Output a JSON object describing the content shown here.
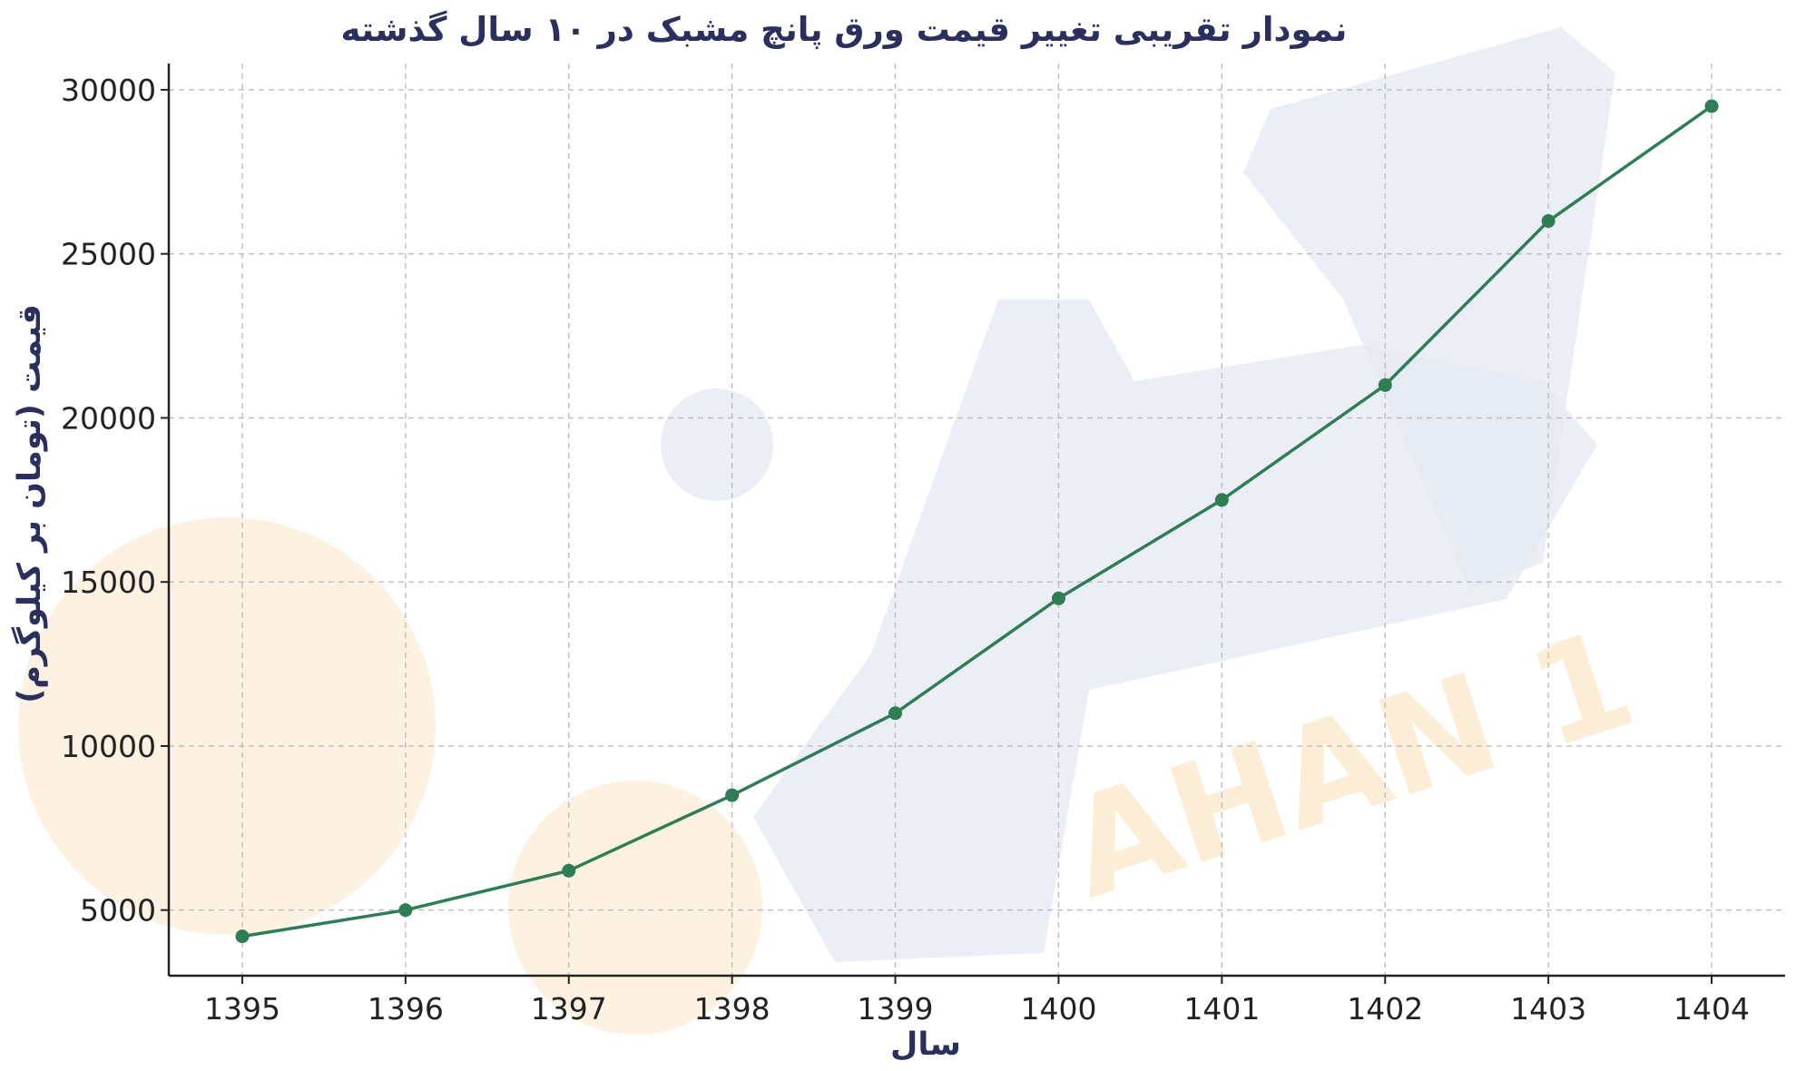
{
  "chart_data": {
    "type": "line",
    "title": "نمودار تقریبی تغییر قیمت ورق پانچ مشبک در ۱۰ سال گذشته",
    "xlabel": "سال",
    "ylabel": "قیمت (تومان بر کیلوگرم)",
    "x": [
      1395,
      1396,
      1397,
      1398,
      1399,
      1400,
      1401,
      1402,
      1403,
      1404
    ],
    "x_tick_labels": [
      "1395",
      "1396",
      "1397",
      "1398",
      "1399",
      "1400",
      "1401",
      "1402",
      "1403",
      "1404"
    ],
    "y_ticks": [
      5000,
      10000,
      15000,
      20000,
      25000,
      30000
    ],
    "y_tick_labels": [
      "5000",
      "10000",
      "15000",
      "20000",
      "25000",
      "30000"
    ],
    "ylim": [
      3000,
      30800
    ],
    "xlim": [
      1394.55,
      1404.45
    ],
    "grid": true,
    "series": [
      {
        "color": "#2e7d55",
        "values": [
          4200,
          5000,
          6200,
          8500,
          11000,
          14500,
          17500,
          21000,
          26000,
          29500
        ]
      }
    ]
  },
  "watermark": {
    "text": "AHAN 1",
    "colors": {
      "gray": "#e4e9f1",
      "orange": "#fdf0dc"
    }
  }
}
